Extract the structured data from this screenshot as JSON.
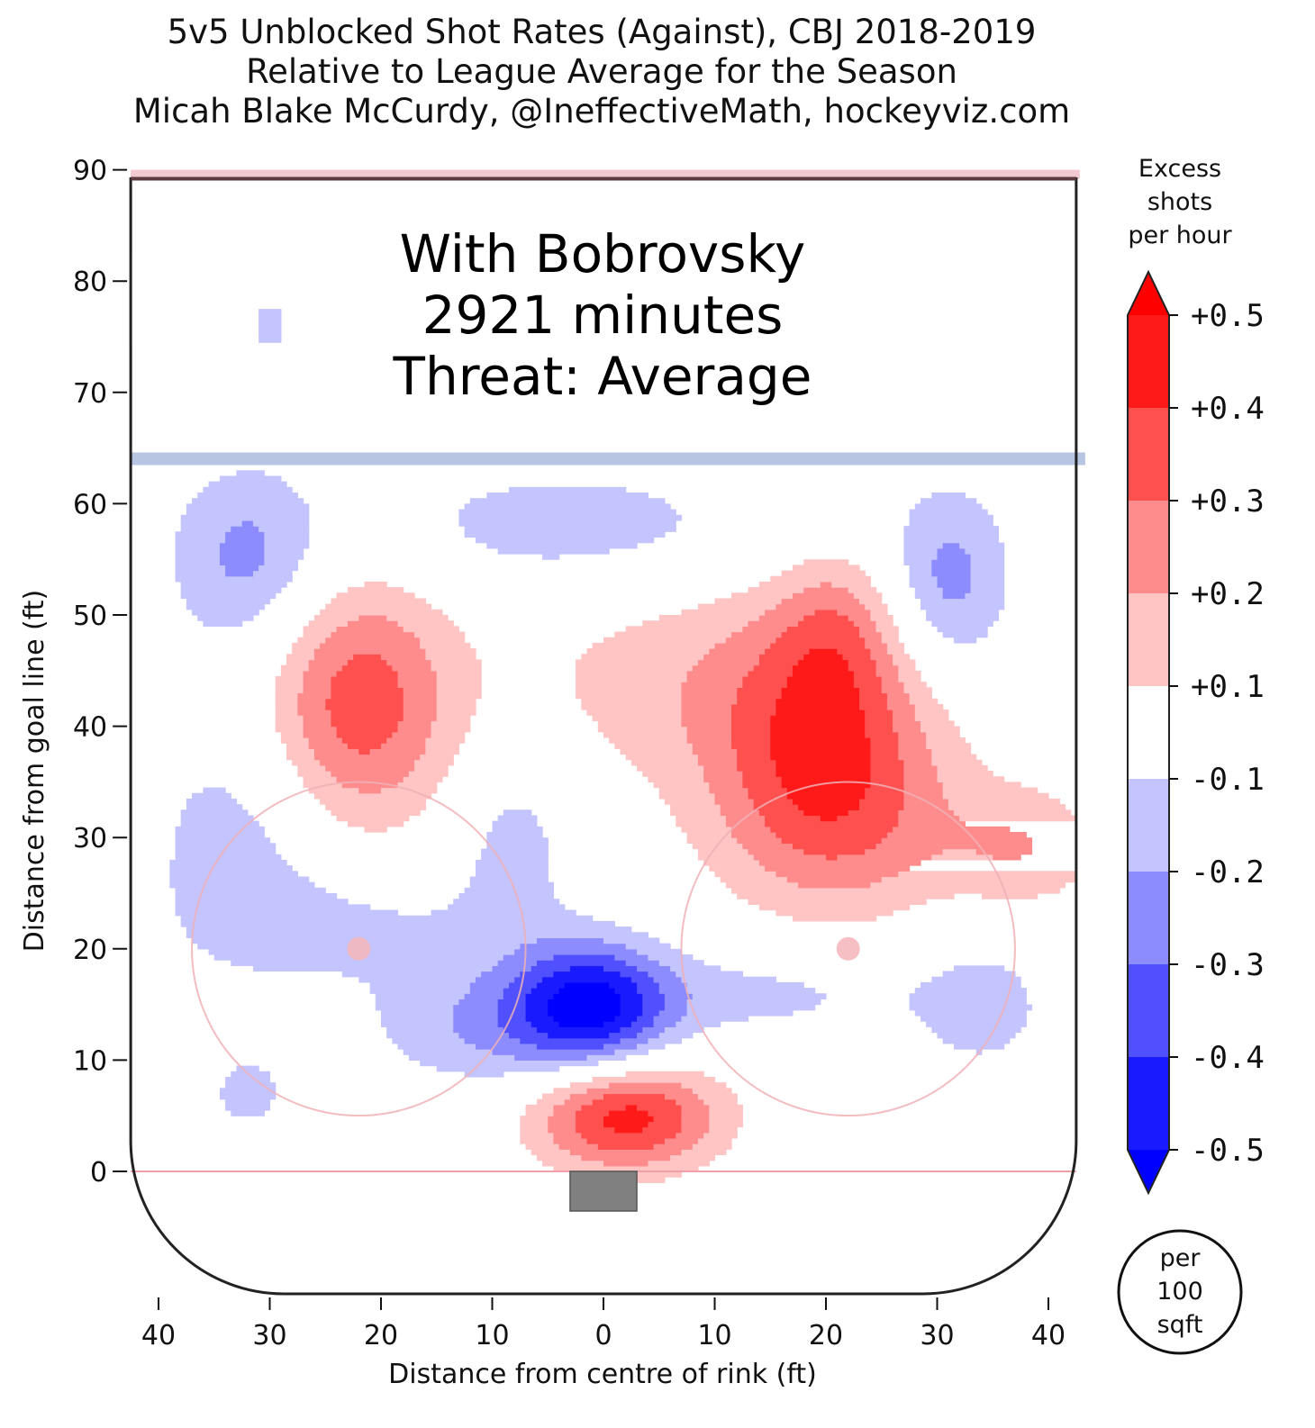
{
  "title": {
    "line1": "5v5 Unblocked Shot Rates (Against), CBJ 2018-2019",
    "line2": "Relative to League Average for the Season",
    "line3": "Micah Blake McCurdy, @IneffectiveMath, hockeyviz.com"
  },
  "annotation": {
    "line1": "With Bobrovsky",
    "line2": "2921 minutes",
    "line3": "Threat: Average"
  },
  "colorbar": {
    "title_lines": [
      "Excess",
      "shots",
      "per hour"
    ],
    "tick_labels": [
      "+0.5",
      "+0.4",
      "+0.3",
      "+0.2",
      "+0.1",
      "-0.1",
      "-0.2",
      "-0.3",
      "-0.4",
      "-0.5"
    ],
    "unit_lines": [
      "per",
      "100",
      "sqft"
    ],
    "levels": [
      {
        "range": [
          0.4,
          0.5
        ],
        "color": "#ff1a1a"
      },
      {
        "range": [
          0.3,
          0.4
        ],
        "color": "#ff5050"
      },
      {
        "range": [
          0.2,
          0.3
        ],
        "color": "#ff8c8c"
      },
      {
        "range": [
          0.1,
          0.2
        ],
        "color": "#ffc4c4"
      },
      {
        "range": [
          -0.1,
          0.1
        ],
        "color": "#ffffff"
      },
      {
        "range": [
          -0.2,
          -0.1
        ],
        "color": "#c4c4ff"
      },
      {
        "range": [
          -0.3,
          -0.2
        ],
        "color": "#8c8cff"
      },
      {
        "range": [
          -0.4,
          -0.3
        ],
        "color": "#5050ff"
      },
      {
        "range": [
          -0.5,
          -0.4
        ],
        "color": "#1a1aff"
      }
    ]
  },
  "chart_data": {
    "type": "heatmap",
    "title": "5v5 Unblocked Shot Rates (Against), CBJ 2018-2019",
    "subtitle": "Relative to League Average for the Season",
    "xlabel": "Distance from centre of rink (ft)",
    "ylabel": "Distance from goal line (ft)",
    "xlim": [
      -42.5,
      42.5
    ],
    "ylim": [
      -11,
      90
    ],
    "x_ticks": [
      -40,
      -30,
      -20,
      -10,
      0,
      10,
      20,
      30,
      40
    ],
    "x_tick_labels": [
      "40",
      "30",
      "20",
      "10",
      "0",
      "10",
      "20",
      "30",
      "40"
    ],
    "y_ticks": [
      0,
      10,
      20,
      30,
      40,
      50,
      60,
      70,
      80,
      90
    ],
    "y_tick_labels": [
      "0",
      "10",
      "20",
      "30",
      "40",
      "50",
      "60",
      "70",
      "80",
      "90"
    ],
    "value_unit": "Excess shots per hour per 100 sqft",
    "rink": {
      "blue_line_y": 64,
      "faceoff_dots": [
        [
          -22,
          20
        ],
        [
          22,
          20
        ]
      ],
      "faceoff_circle_radius": 15,
      "goal_line_y": 0
    },
    "hotspots": [
      {
        "x": -22,
        "y": 42,
        "sx": 6,
        "sy": 8,
        "amp": 0.36
      },
      {
        "x": 20,
        "y": 38,
        "sx": 7,
        "sy": 8,
        "amp": 0.34
      },
      {
        "x": 8,
        "y": 44,
        "sx": 12,
        "sy": 7,
        "amp": 0.15
      },
      {
        "x": 22,
        "y": 30,
        "sx": 9,
        "sy": 6,
        "amp": 0.14
      },
      {
        "x": 21,
        "y": 49,
        "sx": 4,
        "sy": 5,
        "amp": 0.16
      },
      {
        "x": 2,
        "y": 5,
        "sx": 6,
        "sy": 3.5,
        "amp": 0.45
      },
      {
        "x": 38,
        "y": 29,
        "sx": 5,
        "sy": 4,
        "amp": 0.17
      },
      {
        "x": -1,
        "y": 15,
        "sx": 5,
        "sy": 4,
        "amp": -0.47
      },
      {
        "x": -10,
        "y": 13,
        "sx": 8,
        "sy": 4,
        "amp": -0.19
      },
      {
        "x": -3,
        "y": 58,
        "sx": 13,
        "sy": 4,
        "amp": -0.16
      },
      {
        "x": -32,
        "y": 55,
        "sx": 5,
        "sy": 6,
        "amp": -0.23
      },
      {
        "x": 31,
        "y": 53,
        "sx": 4,
        "sy": 6,
        "amp": -0.25
      },
      {
        "x": -33,
        "y": 30,
        "sx": 6,
        "sy": 8,
        "amp": -0.15
      },
      {
        "x": -22,
        "y": 22,
        "sx": 10,
        "sy": 4,
        "amp": -0.12
      },
      {
        "x": -8,
        "y": 30,
        "sx": 4,
        "sy": 6,
        "amp": -0.14
      },
      {
        "x": 15,
        "y": 16,
        "sx": 9,
        "sy": 3,
        "amp": -0.13
      },
      {
        "x": 34,
        "y": 15,
        "sx": 5,
        "sy": 5,
        "amp": -0.14
      },
      {
        "x": -32,
        "y": 7,
        "sx": 3,
        "sy": 3,
        "amp": -0.13
      },
      {
        "x": -30,
        "y": 76,
        "sx": 1.5,
        "sy": 2,
        "amp": -0.14
      }
    ]
  }
}
